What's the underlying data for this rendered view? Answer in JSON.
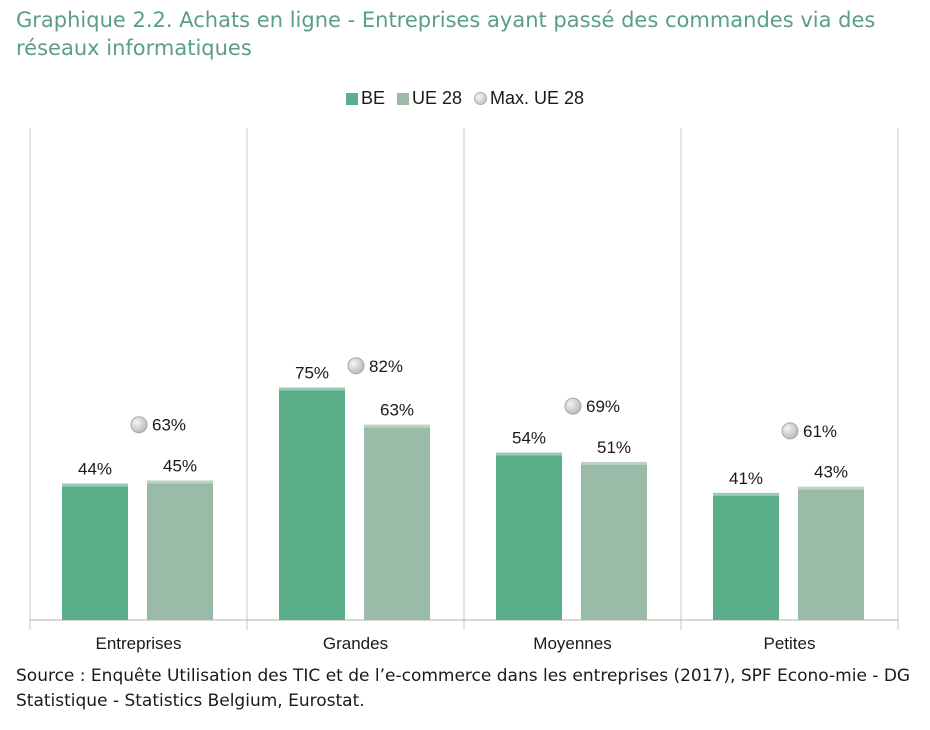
{
  "title": "Graphique 2.2. Achats en ligne - Entreprises ayant passé des commandes via des réseaux informatiques",
  "source": "Source : Enquête Utilisation des TIC et de l’e-commerce dans les entreprises (2017), SPF Econo-mie - DG Statistique - Statistics Belgium, Eurostat.",
  "chart_data": {
    "type": "bar",
    "categories": [
      "Entreprises",
      "Grandes",
      "Moyennes",
      "Petites"
    ],
    "series": [
      {
        "name": "BE",
        "values": [
          44,
          75,
          54,
          41
        ],
        "labels": [
          "44%",
          "75%",
          "54%",
          "41%"
        ],
        "color": "#5aaf8a",
        "marker": "bar"
      },
      {
        "name": "UE 28",
        "values": [
          45,
          63,
          51,
          43
        ],
        "labels": [
          "45%",
          "63%",
          "51%",
          "43%"
        ],
        "color": "#99bba7",
        "marker": "bar"
      },
      {
        "name": "Max. UE 28",
        "values": [
          63,
          82,
          69,
          61
        ],
        "labels": [
          "63%",
          "82%",
          "69%",
          "61%"
        ],
        "color": "#c9cdca",
        "marker": "point"
      }
    ],
    "ylim": [
      0,
      100
    ],
    "grid": false,
    "legend_position": "top-center"
  }
}
